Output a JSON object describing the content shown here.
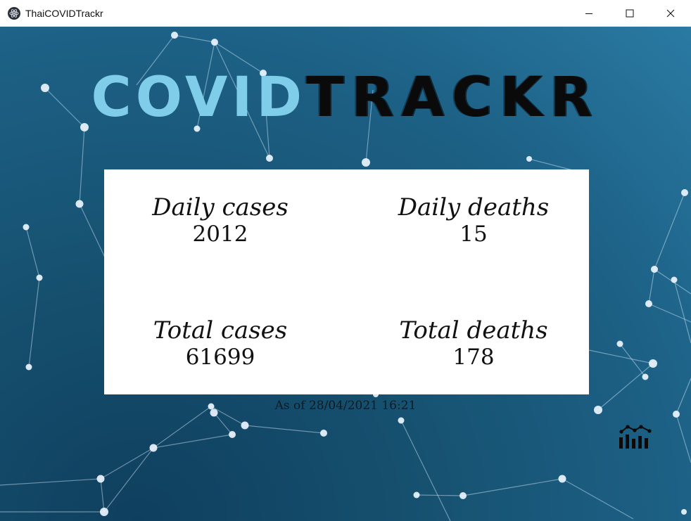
{
  "window": {
    "title": "ThaiCOVIDTrackr",
    "icon": "electron-app-icon",
    "controls": [
      "minimize-icon",
      "maximize-icon",
      "close-icon"
    ]
  },
  "logo": {
    "part1": "COVID",
    "part2": "TRACKR",
    "colors": {
      "part1": "#7fcde9",
      "part2": "#0a0a0a"
    }
  },
  "stats": {
    "daily_cases": {
      "label": "Daily cases",
      "value": "2012"
    },
    "daily_deaths": {
      "label": "Daily deaths",
      "value": "15"
    },
    "total_cases": {
      "label": "Total cases",
      "value": "61699"
    },
    "total_deaths": {
      "label": "Total deaths",
      "value": "178"
    }
  },
  "updated": {
    "text": "As of 28/04/2021 16:21"
  },
  "chart_button": {
    "icon": "chart-icon"
  },
  "colors": {
    "background": "#1d6186",
    "card": "#ffffff"
  }
}
